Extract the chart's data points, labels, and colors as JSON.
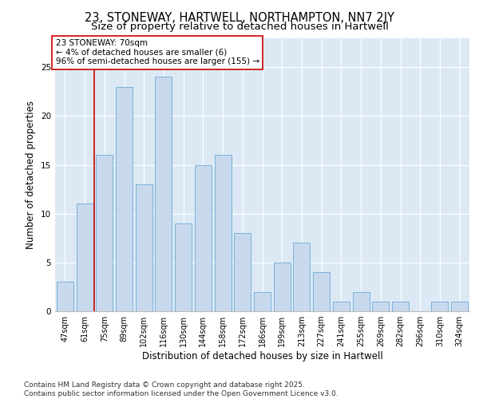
{
  "title_line1": "23, STONEWAY, HARTWELL, NORTHAMPTON, NN7 2JY",
  "title_line2": "Size of property relative to detached houses in Hartwell",
  "xlabel": "Distribution of detached houses by size in Hartwell",
  "ylabel": "Number of detached properties",
  "categories": [
    "47sqm",
    "61sqm",
    "75sqm",
    "89sqm",
    "102sqm",
    "116sqm",
    "130sqm",
    "144sqm",
    "158sqm",
    "172sqm",
    "186sqm",
    "199sqm",
    "213sqm",
    "227sqm",
    "241sqm",
    "255sqm",
    "269sqm",
    "282sqm",
    "296sqm",
    "310sqm",
    "324sqm"
  ],
  "values": [
    3,
    11,
    16,
    23,
    13,
    24,
    9,
    15,
    16,
    8,
    2,
    5,
    7,
    4,
    1,
    2,
    1,
    1,
    0,
    1,
    1
  ],
  "bar_color": "#c8d9ee",
  "bar_edge_color": "#6aaad4",
  "vline_x": 1.5,
  "vline_color": "#cc0000",
  "annotation_text": "23 STONEWAY: 70sqm\n← 4% of detached houses are smaller (6)\n96% of semi-detached houses are larger (155) →",
  "annotation_box_color": "#ffffff",
  "annotation_border_color": "#cc0000",
  "ylim": [
    0,
    28
  ],
  "yticks": [
    0,
    5,
    10,
    15,
    20,
    25
  ],
  "background_color": "#dce9f5",
  "fig_color": "#ffffff",
  "grid_color": "#ffffff",
  "footer_text": "Contains HM Land Registry data © Crown copyright and database right 2025.\nContains public sector information licensed under the Open Government Licence v3.0.",
  "title_fontsize": 10.5,
  "subtitle_fontsize": 9.5,
  "axis_label_fontsize": 8.5,
  "tick_fontsize": 7,
  "footer_fontsize": 6.5,
  "annotation_fontsize": 7.5
}
